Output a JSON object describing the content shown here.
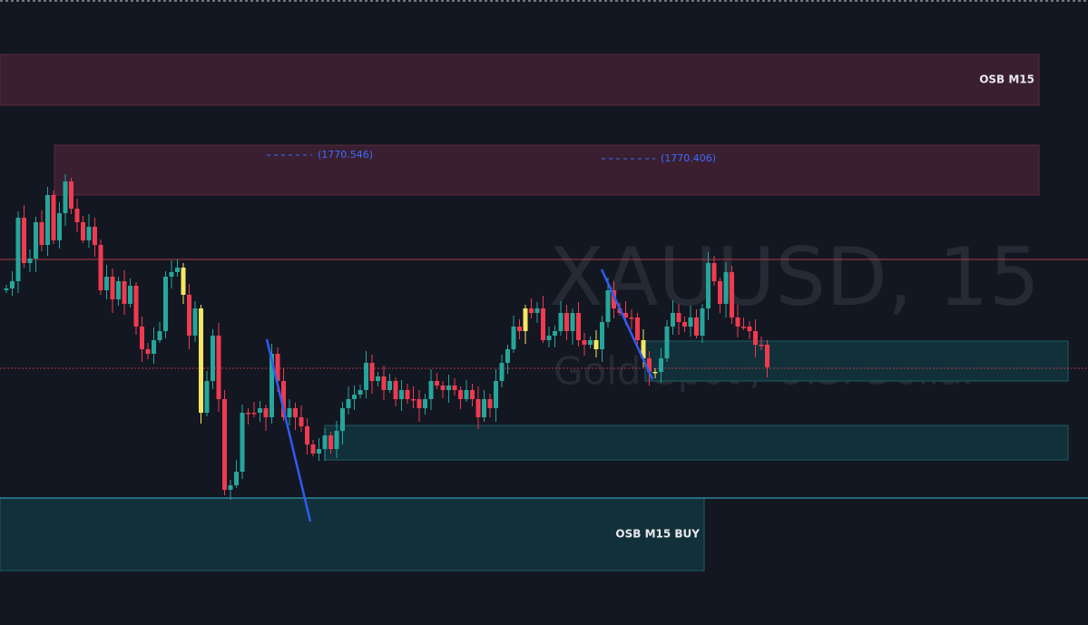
{
  "symbol": "XAUUSD, 15",
  "description": "Gold Spot / U.S. Dollar",
  "zones": [
    {
      "label": "OSB M15"
    },
    {
      "label": "OSB M15 BUY"
    }
  ],
  "price_labels": [
    "(1770.546)",
    "(1770.406)"
  ]
}
